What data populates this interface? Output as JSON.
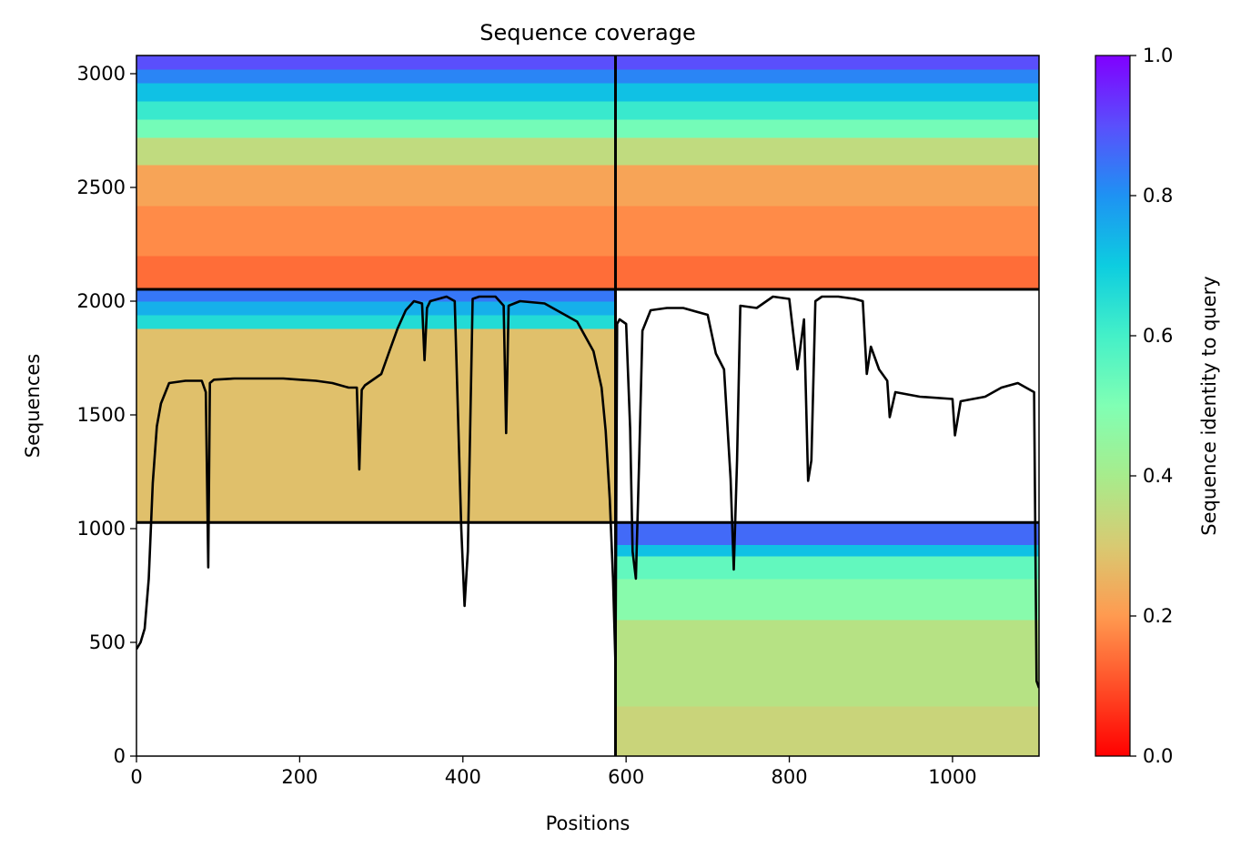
{
  "chart_data": {
    "type": "heatmap",
    "title": "Sequence coverage",
    "xlabel": "Positions",
    "ylabel": "Sequences",
    "xlim": [
      0,
      1106
    ],
    "ylim": [
      0,
      3080
    ],
    "xticks": [
      0,
      200,
      400,
      600,
      800,
      1000
    ],
    "yticks": [
      0,
      500,
      1000,
      1500,
      2000,
      2500,
      3000
    ],
    "grid": false,
    "colorbar": {
      "label": "Sequence identity to query",
      "colormap": "rainbow_r",
      "range": [
        0.0,
        1.0
      ],
      "ticks": [
        "0.0",
        "0.2",
        "0.4",
        "0.6",
        "0.8",
        "1.0"
      ]
    },
    "chain_boundaries": {
      "x": [
        587
      ],
      "y": [
        1027,
        2052
      ]
    },
    "blocks": [
      {
        "name": "block-1",
        "x_range": [
          0,
          587
        ],
        "y_range": [
          1027,
          2052
        ],
        "identity_bands": [
          {
            "y_from": 1027,
            "y_to": 1880,
            "identity": 0.28
          },
          {
            "y_from": 1880,
            "y_to": 1940,
            "identity": 0.66
          },
          {
            "y_from": 1940,
            "y_to": 2000,
            "identity": 0.75
          },
          {
            "y_from": 2000,
            "y_to": 2052,
            "identity": 0.84
          }
        ]
      },
      {
        "name": "block-2",
        "x_range": [
          587,
          1106
        ],
        "y_range": [
          0,
          1027
        ],
        "identity_bands": [
          {
            "y_from": 0,
            "y_to": 220,
            "identity": 0.33
          },
          {
            "y_from": 220,
            "y_to": 600,
            "identity": 0.37
          },
          {
            "y_from": 600,
            "y_to": 780,
            "identity": 0.48
          },
          {
            "y_from": 780,
            "y_to": 880,
            "identity": 0.55
          },
          {
            "y_from": 880,
            "y_to": 930,
            "identity": 0.72
          },
          {
            "y_from": 930,
            "y_to": 1027,
            "identity": 0.86
          }
        ]
      },
      {
        "name": "block-3",
        "x_range": [
          0,
          1106
        ],
        "y_range": [
          2052,
          3080
        ],
        "identity_bands": [
          {
            "y_from": 2052,
            "y_to": 2200,
            "identity": 0.14
          },
          {
            "y_from": 2200,
            "y_to": 2420,
            "identity": 0.18
          },
          {
            "y_from": 2420,
            "y_to": 2600,
            "identity": 0.22
          },
          {
            "y_from": 2600,
            "y_to": 2720,
            "identity": 0.35
          },
          {
            "y_from": 2720,
            "y_to": 2800,
            "identity": 0.52
          },
          {
            "y_from": 2800,
            "y_to": 2880,
            "identity": 0.62
          },
          {
            "y_from": 2880,
            "y_to": 2960,
            "identity": 0.72
          },
          {
            "y_from": 2960,
            "y_to": 3020,
            "identity": 0.82
          },
          {
            "y_from": 3020,
            "y_to": 3080,
            "identity": 0.9
          }
        ]
      }
    ],
    "series": [
      {
        "type": "line",
        "color": "#000000",
        "x": [
          0,
          5,
          10,
          15,
          20,
          25,
          30,
          40,
          60,
          80,
          85,
          88,
          90,
          95,
          120,
          150,
          180,
          200,
          220,
          240,
          260,
          270,
          273,
          276,
          280,
          300,
          310,
          320,
          330,
          340,
          350,
          353,
          356,
          360,
          370,
          380,
          390,
          398,
          402,
          406,
          412,
          420,
          440,
          450,
          453,
          456,
          470,
          500,
          540,
          560,
          570,
          575,
          580,
          584,
          587,
          589,
          592,
          600,
          605,
          608,
          612,
          616,
          620,
          630,
          650,
          670,
          700,
          710,
          720,
          728,
          732,
          736,
          740,
          760,
          780,
          800,
          810,
          818,
          823,
          827,
          832,
          840,
          860,
          880,
          890,
          895,
          900,
          910,
          920,
          923,
          930,
          960,
          1000,
          1003,
          1010,
          1040,
          1060,
          1080,
          1100,
          1103,
          1106
        ],
        "y": [
          470,
          500,
          560,
          780,
          1200,
          1450,
          1550,
          1640,
          1650,
          1650,
          1600,
          830,
          1640,
          1655,
          1660,
          1660,
          1660,
          1655,
          1650,
          1640,
          1620,
          1620,
          1260,
          1610,
          1630,
          1680,
          1780,
          1880,
          1960,
          2000,
          1990,
          1740,
          1970,
          2000,
          2010,
          2020,
          2000,
          1000,
          660,
          900,
          2010,
          2020,
          2020,
          1980,
          1420,
          1980,
          2000,
          1990,
          1910,
          1780,
          1620,
          1430,
          1130,
          780,
          400,
          1900,
          1920,
          1900,
          1440,
          900,
          780,
          1300,
          1870,
          1960,
          1970,
          1970,
          1940,
          1770,
          1700,
          1220,
          820,
          1300,
          1980,
          1970,
          2020,
          2010,
          1700,
          1920,
          1210,
          1300,
          2000,
          2020,
          2020,
          2010,
          2000,
          1680,
          1800,
          1700,
          1650,
          1490,
          1600,
          1580,
          1570,
          1410,
          1560,
          1580,
          1620,
          1640,
          1600,
          330,
          300
        ]
      }
    ]
  }
}
